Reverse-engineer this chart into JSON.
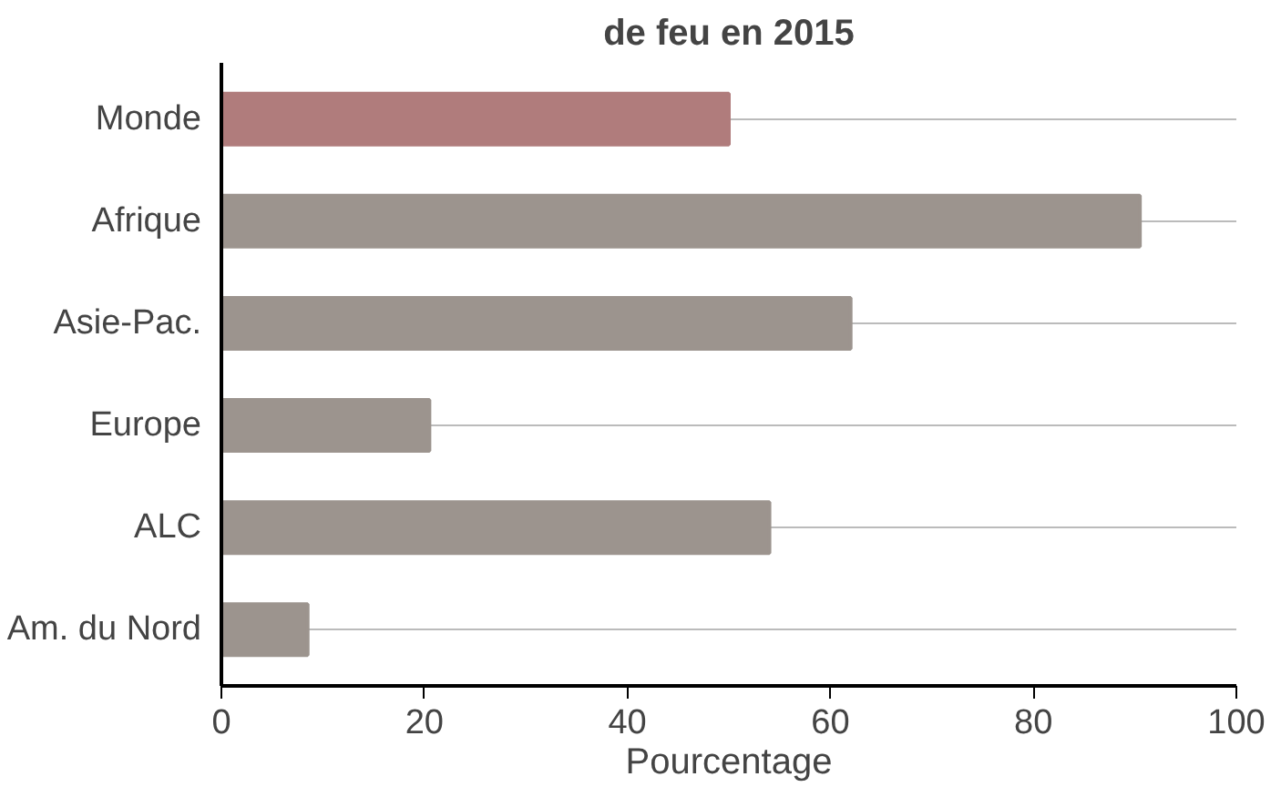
{
  "chart_data": {
    "type": "bar",
    "orientation": "horizontal",
    "title": "de feu en 2015",
    "categories": [
      "Monde",
      "Afrique",
      "Asie-Pac.",
      "Europe",
      "ALC",
      "Am. du Nord"
    ],
    "values": [
      50,
      90.5,
      62,
      20.5,
      54,
      8.5
    ],
    "colors": [
      "#b07c7c",
      "#9c948e",
      "#9c948e",
      "#9c948e",
      "#9c948e",
      "#9c948e"
    ],
    "xlim": [
      0,
      100
    ],
    "xticks": [
      0,
      20,
      40,
      60,
      80,
      100
    ],
    "xlabel": "Pourcentage",
    "grid": "y"
  }
}
